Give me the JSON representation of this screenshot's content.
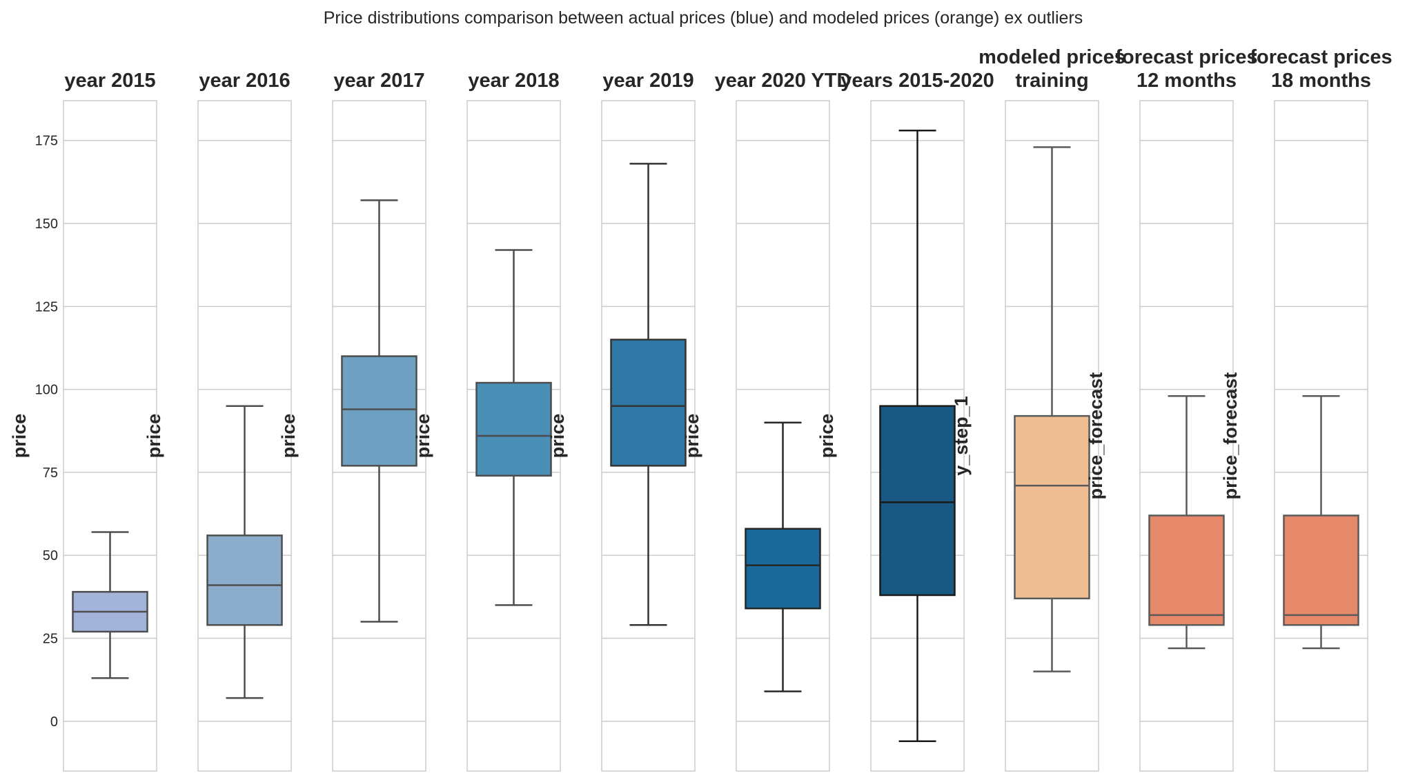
{
  "title": "Price distributions comparison between actual prices (blue) and modeled prices (orange) ex outliers",
  "chart_data": {
    "type": "box",
    "ylim": [
      -15,
      187
    ],
    "yticks": [
      0,
      25,
      50,
      75,
      100,
      125,
      150,
      175
    ],
    "ytick_labels": [
      "0",
      "25",
      "50",
      "75",
      "100",
      "125",
      "150",
      "175"
    ],
    "grid": true,
    "panels": [
      {
        "title": [
          "year 2015"
        ],
        "ylabel": "price",
        "color": "#a3b3d9",
        "stroke": "#4d4d4d",
        "whisker_low": 13,
        "q1": 27,
        "median": 33,
        "q3": 39,
        "whisker_high": 57
      },
      {
        "title": [
          "year 2016"
        ],
        "ylabel": "price",
        "color": "#8badcb",
        "stroke": "#4d4d4d",
        "whisker_low": 7,
        "q1": 29,
        "median": 41,
        "q3": 56,
        "whisker_high": 95
      },
      {
        "title": [
          "year 2017"
        ],
        "ylabel": "price",
        "color": "#6ea0c1",
        "stroke": "#4d4d4d",
        "whisker_low": 30,
        "q1": 77,
        "median": 94,
        "q3": 110,
        "whisker_high": 157
      },
      {
        "title": [
          "year 2018"
        ],
        "ylabel": "price",
        "color": "#4a8fb6",
        "stroke": "#4d4d4d",
        "whisker_low": 35,
        "q1": 74,
        "median": 86,
        "q3": 102,
        "whisker_high": 142
      },
      {
        "title": [
          "year 2019"
        ],
        "ylabel": "price",
        "color": "#3079a6",
        "stroke": "#333333",
        "whisker_low": 29,
        "q1": 77,
        "median": 95,
        "q3": 115,
        "whisker_high": 168
      },
      {
        "title": [
          "year 2020 YTD"
        ],
        "ylabel": "price",
        "color": "#196a9a",
        "stroke": "#262626",
        "whisker_low": 9,
        "q1": 34,
        "median": 47,
        "q3": 58,
        "whisker_high": 90
      },
      {
        "title": [
          "years 2015-2020"
        ],
        "ylabel": "price",
        "color": "#185882",
        "stroke": "#1a1a1a",
        "whisker_low": -6,
        "q1": 38,
        "median": 66,
        "q3": 95,
        "whisker_high": 178
      },
      {
        "title": [
          "modeled prices",
          "training"
        ],
        "ylabel": "y_step_1",
        "color": "#efbe92",
        "stroke": "#5a5a5a",
        "whisker_low": 15,
        "q1": 37,
        "median": 71,
        "q3": 92,
        "whisker_high": 173
      },
      {
        "title": [
          "forecast prices",
          "12 months"
        ],
        "ylabel": "price_forecast",
        "color": "#e5896a",
        "stroke": "#5a5a5a",
        "whisker_low": 22,
        "q1": 29,
        "median": 32,
        "q3": 62,
        "whisker_high": 98
      },
      {
        "title": [
          "forecast prices",
          "18 months"
        ],
        "ylabel": "price_forecast",
        "color": "#e5896a",
        "stroke": "#5a5a5a",
        "whisker_low": 22,
        "q1": 29,
        "median": 32,
        "q3": 62,
        "whisker_high": 98
      }
    ]
  }
}
